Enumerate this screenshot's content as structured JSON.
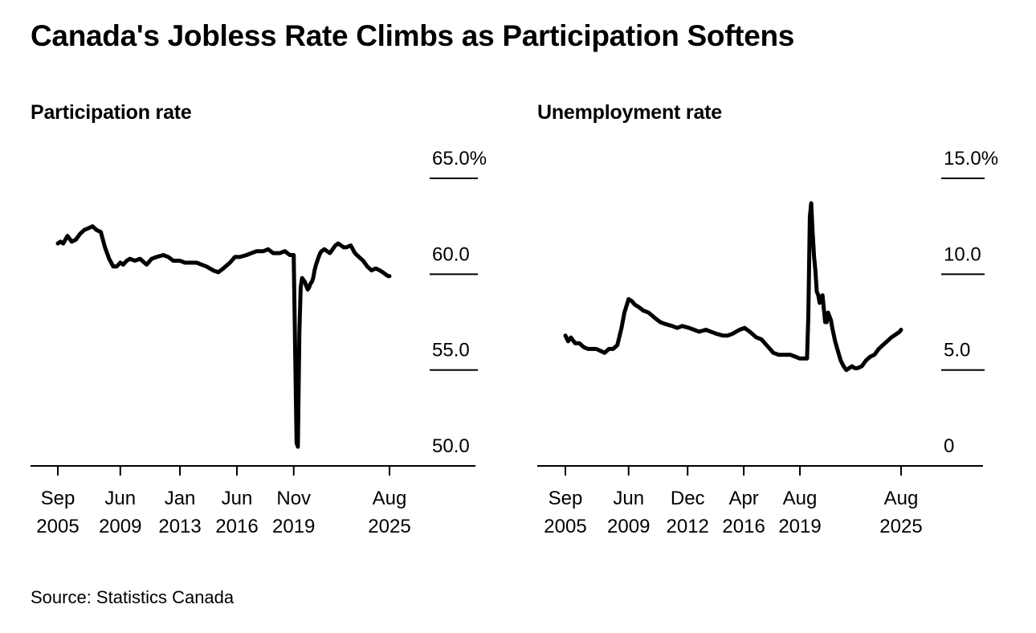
{
  "title": "Canada's Jobless Rate Climbs as Participation Softens",
  "source": "Source: Statistics Canada",
  "colors": {
    "line": "#000000",
    "background": "#ffffff"
  },
  "chart_data": [
    {
      "type": "line",
      "title": "Participation rate",
      "xlabel": "",
      "ylabel": "",
      "x_range": [
        2005.67,
        2025.58
      ],
      "ylim": [
        50,
        65
      ],
      "y_ticks": [
        {
          "value": 65,
          "label": "65.0%"
        },
        {
          "value": 60,
          "label": "60.0"
        },
        {
          "value": 55,
          "label": "55.0"
        },
        {
          "value": 50,
          "label": "50.0"
        }
      ],
      "x_ticks": [
        {
          "value": 2005.67,
          "month": "Sep",
          "year": "2005"
        },
        {
          "value": 2009.42,
          "month": "Jun",
          "year": "2009"
        },
        {
          "value": 2013.0,
          "month": "Jan",
          "year": "2013"
        },
        {
          "value": 2016.42,
          "month": "Jun",
          "year": "2016"
        },
        {
          "value": 2019.83,
          "month": "Nov",
          "year": "2019"
        },
        {
          "value": 2025.58,
          "month": "Aug",
          "year": "2025"
        }
      ],
      "series": [
        {
          "name": "Participation rate",
          "x": [
            2005.67,
            2005.83,
            2006.0,
            2006.25,
            2006.5,
            2006.75,
            2007.0,
            2007.25,
            2007.5,
            2007.75,
            2008.0,
            2008.25,
            2008.5,
            2008.75,
            2009.0,
            2009.2,
            2009.42,
            2009.6,
            2009.8,
            2010.0,
            2010.3,
            2010.6,
            2011.0,
            2011.3,
            2011.6,
            2012.0,
            2012.3,
            2012.6,
            2013.0,
            2013.3,
            2013.6,
            2014.0,
            2014.3,
            2014.6,
            2015.0,
            2015.3,
            2015.6,
            2016.0,
            2016.3,
            2016.6,
            2017.0,
            2017.3,
            2017.6,
            2018.0,
            2018.3,
            2018.6,
            2019.0,
            2019.3,
            2019.6,
            2019.83,
            2020.0,
            2020.08,
            2020.17,
            2020.25,
            2020.33,
            2020.42,
            2020.5,
            2020.58,
            2020.67,
            2020.75,
            2020.83,
            2020.92,
            2021.0,
            2021.08,
            2021.17,
            2021.25,
            2021.33,
            2021.42,
            2021.5,
            2021.67,
            2021.83,
            2022.0,
            2022.17,
            2022.33,
            2022.5,
            2022.67,
            2022.83,
            2023.0,
            2023.25,
            2023.5,
            2023.75,
            2024.0,
            2024.25,
            2024.5,
            2024.75,
            2025.0,
            2025.17,
            2025.33,
            2025.5,
            2025.58
          ],
          "values": [
            61.6,
            61.7,
            61.6,
            62.0,
            61.7,
            61.8,
            62.1,
            62.3,
            62.4,
            62.5,
            62.3,
            62.2,
            61.4,
            60.8,
            60.4,
            60.4,
            60.6,
            60.5,
            60.7,
            60.8,
            60.7,
            60.8,
            60.5,
            60.8,
            60.9,
            61.0,
            60.9,
            60.7,
            60.7,
            60.6,
            60.6,
            60.6,
            60.5,
            60.4,
            60.2,
            60.1,
            60.3,
            60.6,
            60.9,
            60.9,
            61.0,
            61.1,
            61.2,
            61.2,
            61.3,
            61.1,
            61.1,
            61.2,
            61.0,
            61.0,
            51.2,
            51.0,
            57.0,
            59.3,
            59.8,
            59.7,
            59.6,
            59.4,
            59.2,
            59.3,
            59.5,
            59.6,
            59.8,
            60.2,
            60.5,
            60.7,
            60.9,
            61.1,
            61.2,
            61.3,
            61.2,
            61.1,
            61.3,
            61.5,
            61.6,
            61.5,
            61.4,
            61.4,
            61.5,
            61.1,
            60.9,
            60.7,
            60.4,
            60.2,
            60.3,
            60.2,
            60.1,
            60.0,
            59.9,
            59.9
          ]
        }
      ]
    },
    {
      "type": "line",
      "title": "Unemployment rate",
      "xlabel": "",
      "ylabel": "",
      "x_range": [
        2005.67,
        2025.58
      ],
      "ylim": [
        0,
        15
      ],
      "y_ticks": [
        {
          "value": 15,
          "label": "15.0%"
        },
        {
          "value": 10,
          "label": "10.0"
        },
        {
          "value": 5,
          "label": "5.0"
        },
        {
          "value": 0,
          "label": "0"
        }
      ],
      "x_ticks": [
        {
          "value": 2005.67,
          "month": "Sep",
          "year": "2005"
        },
        {
          "value": 2009.42,
          "month": "Jun",
          "year": "2009"
        },
        {
          "value": 2012.92,
          "month": "Dec",
          "year": "2012"
        },
        {
          "value": 2016.25,
          "month": "Apr",
          "year": "2016"
        },
        {
          "value": 2019.58,
          "month": "Aug",
          "year": "2019"
        },
        {
          "value": 2025.58,
          "month": "Aug",
          "year": "2025"
        }
      ],
      "series": [
        {
          "name": "Unemployment rate",
          "x": [
            2005.67,
            2005.83,
            2006.0,
            2006.25,
            2006.5,
            2006.75,
            2007.0,
            2007.25,
            2007.5,
            2007.75,
            2008.0,
            2008.25,
            2008.5,
            2008.75,
            2009.0,
            2009.17,
            2009.42,
            2009.6,
            2009.8,
            2010.0,
            2010.3,
            2010.6,
            2011.0,
            2011.3,
            2011.6,
            2012.0,
            2012.3,
            2012.6,
            2013.0,
            2013.3,
            2013.6,
            2014.0,
            2014.3,
            2014.6,
            2015.0,
            2015.3,
            2015.6,
            2016.0,
            2016.3,
            2016.6,
            2017.0,
            2017.3,
            2017.6,
            2018.0,
            2018.3,
            2018.6,
            2019.0,
            2019.3,
            2019.58,
            2019.8,
            2020.0,
            2020.08,
            2020.17,
            2020.25,
            2020.33,
            2020.42,
            2020.5,
            2020.58,
            2020.67,
            2020.75,
            2020.83,
            2020.92,
            2021.0,
            2021.08,
            2021.17,
            2021.25,
            2021.33,
            2021.42,
            2021.5,
            2021.67,
            2021.83,
            2022.0,
            2022.17,
            2022.33,
            2022.5,
            2022.67,
            2022.83,
            2023.0,
            2023.25,
            2023.5,
            2023.75,
            2024.0,
            2024.25,
            2024.5,
            2024.75,
            2025.0,
            2025.17,
            2025.33,
            2025.5,
            2025.58
          ],
          "values": [
            6.8,
            6.5,
            6.7,
            6.4,
            6.4,
            6.2,
            6.1,
            6.1,
            6.1,
            6.0,
            5.9,
            6.1,
            6.1,
            6.3,
            7.2,
            8.0,
            8.7,
            8.6,
            8.4,
            8.3,
            8.1,
            8.0,
            7.7,
            7.5,
            7.4,
            7.3,
            7.2,
            7.3,
            7.2,
            7.1,
            7.0,
            7.1,
            7.0,
            6.9,
            6.8,
            6.8,
            6.9,
            7.1,
            7.2,
            7.0,
            6.7,
            6.6,
            6.3,
            5.9,
            5.8,
            5.8,
            5.8,
            5.7,
            5.6,
            5.6,
            5.6,
            7.8,
            13.0,
            13.7,
            12.2,
            10.9,
            10.2,
            9.1,
            8.9,
            8.5,
            8.8,
            8.9,
            8.2,
            7.5,
            7.5,
            8.0,
            7.8,
            7.6,
            7.2,
            6.5,
            6.0,
            5.5,
            5.2,
            5.0,
            5.1,
            5.2,
            5.1,
            5.1,
            5.2,
            5.5,
            5.7,
            5.8,
            6.1,
            6.3,
            6.5,
            6.7,
            6.8,
            6.9,
            7.0,
            7.1
          ]
        }
      ]
    }
  ]
}
